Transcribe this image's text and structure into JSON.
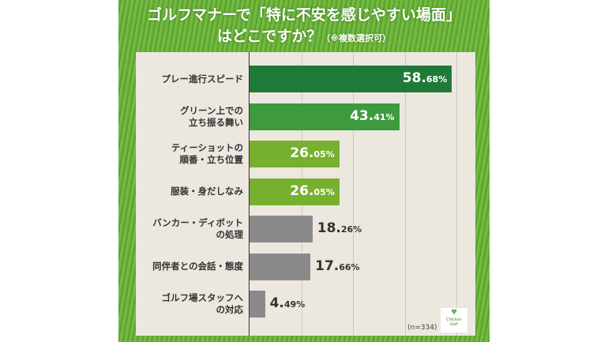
{
  "chart_data": {
    "type": "bar",
    "title": "ゴルフマナーで「特に不安を感じやすい場面」はどこですか？",
    "subtitle": "（※複数選択可）",
    "categories": [
      "プレー進行スピード",
      "グリーン上での\n立ち振る舞い",
      "ティーショットの\n順番・立ち位置",
      "服装・身だしなみ",
      "バンカー・ディボット\nの処理",
      "同伴者との会話・態度",
      "ゴルフ場スタッフへ\nの対応"
    ],
    "values": [
      58.68,
      43.41,
      26.05,
      26.05,
      18.26,
      17.66,
      4.49
    ],
    "value_labels": [
      "58.68%",
      "43.41%",
      "26.05%",
      "26.05%",
      "18.26%",
      "17.66%",
      "4.49%"
    ],
    "colors": [
      "#1f7a3a",
      "#3d9a3f",
      "#77b02e",
      "#77b02e",
      "#8a8a8a",
      "#8a8a8a",
      "#8a8a8a"
    ],
    "xlim": [
      0,
      60
    ],
    "gridlines": [
      15,
      30,
      45,
      60
    ],
    "note": "(n=334)",
    "orientation": "horizontal"
  },
  "logo": {
    "text": "Chicken Golf"
  }
}
